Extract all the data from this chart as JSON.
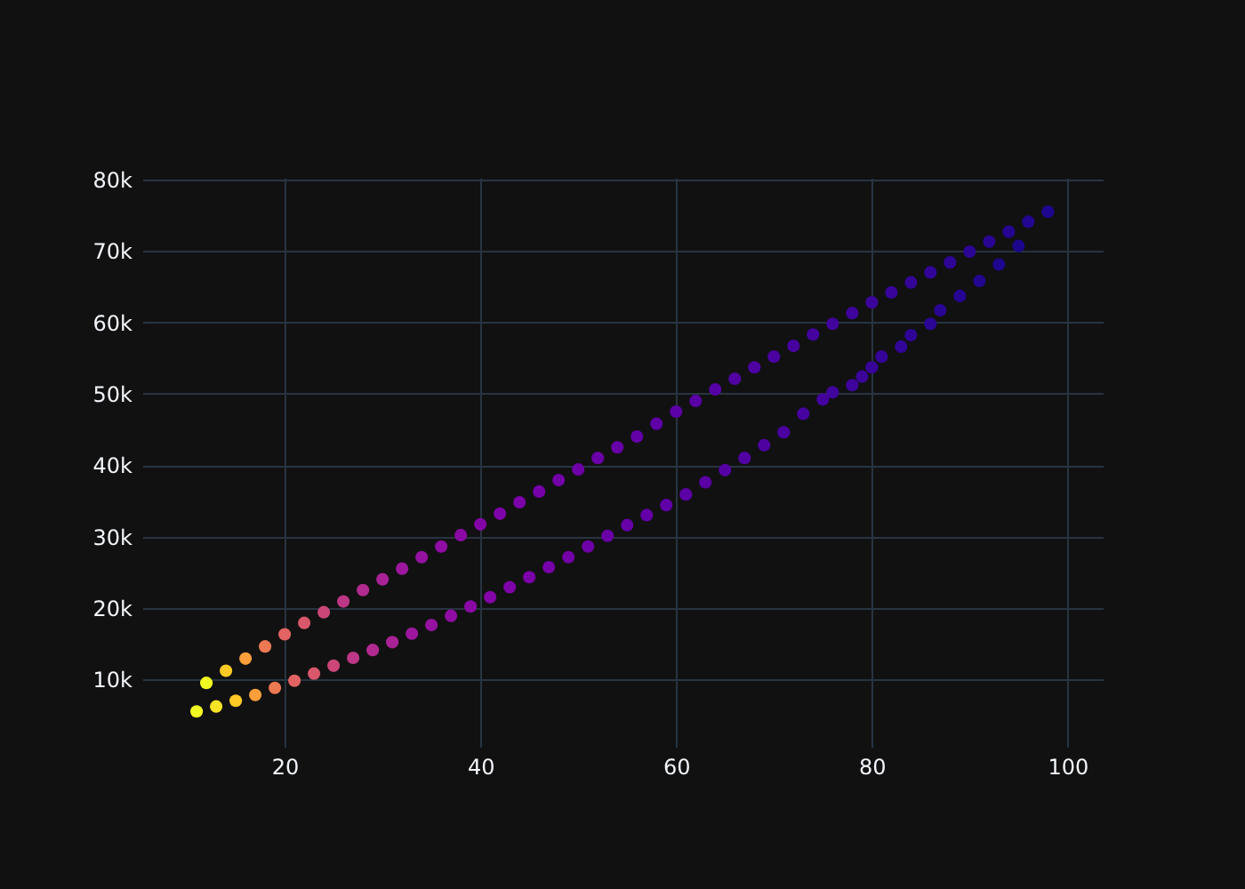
{
  "chart_data": {
    "type": "scatter",
    "marker": "circle",
    "grid": true,
    "xlim": [
      5.45,
      103.6
    ],
    "ylim": [
      550,
      80250
    ],
    "xticks": [
      20,
      40,
      60,
      80,
      100
    ],
    "yticks": [
      {
        "value": 10000,
        "label": "10k"
      },
      {
        "value": 20000,
        "label": "20k"
      },
      {
        "value": 30000,
        "label": "30k"
      },
      {
        "value": 40000,
        "label": "40k"
      },
      {
        "value": 50000,
        "label": "50k"
      },
      {
        "value": 60000,
        "label": "60k"
      },
      {
        "value": 70000,
        "label": "70k"
      },
      {
        "value": 80000,
        "label": "80k"
      }
    ],
    "series": [
      {
        "x": [
          12,
          14,
          16,
          18,
          20,
          22,
          24,
          26,
          28,
          30,
          32,
          34,
          36,
          38,
          40,
          42,
          44,
          46,
          48,
          50,
          52,
          54,
          56,
          58,
          60,
          62,
          64,
          66,
          68,
          70,
          72,
          74,
          76,
          78,
          80,
          82,
          84,
          86,
          88,
          90,
          92,
          94,
          96,
          98
        ],
        "values": [
          9500,
          11200,
          12900,
          14600,
          16300,
          17900,
          19400,
          20900,
          22500,
          24000,
          25500,
          27100,
          28600,
          30200,
          31700,
          33200,
          34800,
          36300,
          37900,
          39400,
          41000,
          42500,
          44000,
          45800,
          47500,
          49000,
          50600,
          52100,
          53700,
          55200,
          56700,
          58300,
          59800,
          61300,
          62800,
          64200,
          65600,
          67000,
          68400,
          69900,
          71300,
          72700,
          74100,
          75500
        ],
        "colors": [
          "#f0f921",
          "#fdca26",
          "#fb9f3a",
          "#ed7953",
          "#e16462",
          "#d8576b",
          "#cc4778",
          "#bd3786",
          "#b12a90",
          "#a82296",
          "#9c179e",
          "#9512a1",
          "#8f0da4",
          "#8a09a5",
          "#8405a7",
          "#7e03a8",
          "#7a02a8",
          "#7601a8",
          "#7201a8",
          "#6e00a8",
          "#6a00a8",
          "#6600a7",
          "#6300a7",
          "#5f01a6",
          "#5c01a6",
          "#5901a5",
          "#5502a4",
          "#5202a3",
          "#4e02a2",
          "#4a02a0",
          "#47039f",
          "#44039e",
          "#41049d",
          "#3e049c",
          "#3b049a",
          "#38049a",
          "#350498",
          "#310597",
          "#2e0595",
          "#2b0594",
          "#280592",
          "#250591",
          "#22068f",
          "#1f068e"
        ]
      },
      {
        "x": [
          11,
          13,
          15,
          17,
          19,
          21,
          23,
          25,
          27,
          29,
          31,
          33,
          35,
          37,
          39,
          41,
          43,
          45,
          47,
          49,
          51,
          53,
          55,
          57,
          59,
          61,
          63,
          65,
          67,
          69,
          71,
          73,
          75,
          76,
          78,
          79,
          80,
          81,
          83,
          84,
          86,
          87,
          89,
          91,
          93,
          95
        ],
        "values": [
          5500,
          6200,
          7000,
          7800,
          8800,
          9800,
          10800,
          11900,
          13000,
          14100,
          15200,
          16400,
          17600,
          18900,
          20200,
          21500,
          22900,
          24300,
          25700,
          27100,
          28600,
          30100,
          31600,
          33000,
          34400,
          35900,
          37600,
          39300,
          41000,
          42800,
          44600,
          47200,
          49200,
          50200,
          51200,
          52400,
          53700,
          55200,
          56600,
          58200,
          59800,
          61700,
          63700,
          65800,
          68100,
          70700
        ],
        "colors": [
          "#f0f921",
          "#f7e225",
          "#fdca26",
          "#fb9f3a",
          "#ed7953",
          "#e16462",
          "#d8576b",
          "#cc4778",
          "#bd3786",
          "#b12a90",
          "#a82296",
          "#9c179e",
          "#9512a1",
          "#8f0da4",
          "#8a09a5",
          "#8405a7",
          "#7e03a8",
          "#7a02a8",
          "#7601a8",
          "#7201a8",
          "#6e00a8",
          "#6a00a8",
          "#6600a7",
          "#6300a7",
          "#5f01a6",
          "#5c01a6",
          "#5901a5",
          "#5502a4",
          "#5202a3",
          "#4e02a2",
          "#4a02a0",
          "#47039f",
          "#44039e",
          "#41049d",
          "#3e049c",
          "#3b049a",
          "#38049a",
          "#350498",
          "#310597",
          "#2e0595",
          "#2b0594",
          "#280592",
          "#250591",
          "#22068f",
          "#1f068e",
          "#1c068c"
        ]
      }
    ]
  }
}
